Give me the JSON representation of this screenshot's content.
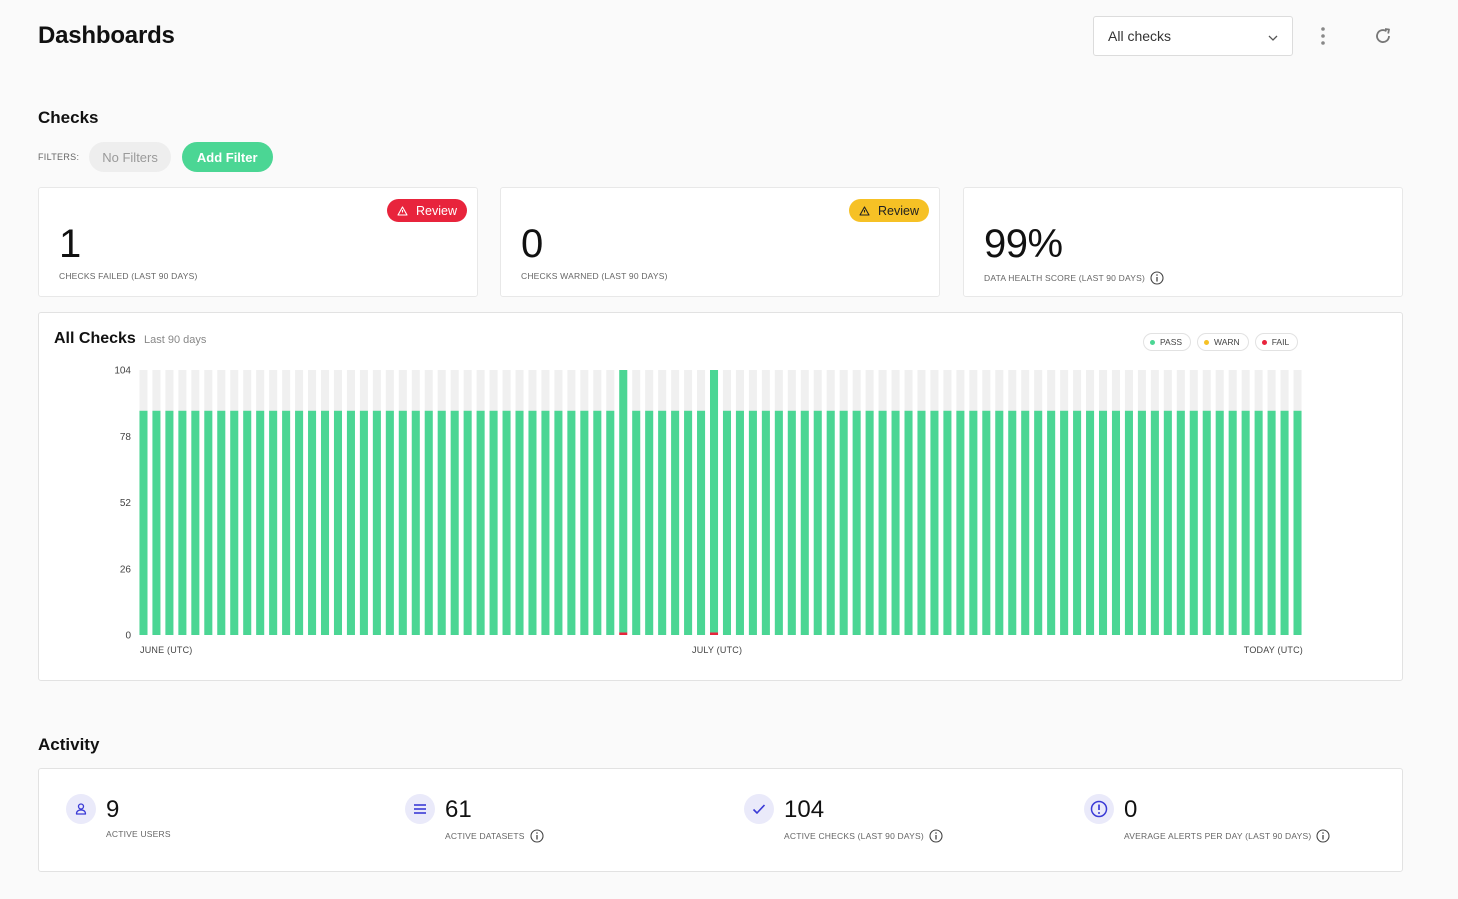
{
  "header": {
    "title": "Dashboards",
    "select_value": "All checks"
  },
  "checks": {
    "title": "Checks",
    "filters_label": "FILTERS:",
    "no_filters": "No Filters",
    "add_filter": "Add Filter"
  },
  "stats": [
    {
      "value": "1",
      "label": "CHECKS FAILED (LAST 90 DAYS)",
      "badge": "Review",
      "badge_color": "#e8243c"
    },
    {
      "value": "0",
      "label": "CHECKS WARNED (LAST 90 DAYS)",
      "badge": "Review",
      "badge_color": "#f6c125"
    },
    {
      "value": "99%",
      "label": "DATA HEALTH SCORE (LAST 90 DAYS)"
    }
  ],
  "chart": {
    "title": "All Checks",
    "subtitle": "Last 90 days",
    "legend": [
      {
        "label": "PASS",
        "color": "#4bd694"
      },
      {
        "label": "WARN",
        "color": "#f6c125"
      },
      {
        "label": "FAIL",
        "color": "#e8243c"
      }
    ]
  },
  "chart_data": {
    "type": "bar",
    "stacked": true,
    "bar_count": 90,
    "ylim": [
      0,
      104
    ],
    "yticks": [
      "0",
      "26",
      "52",
      "78",
      "104"
    ],
    "xticks": [
      "JUNE (UTC)",
      "JULY (UTC)",
      "TODAY (UTC)"
    ],
    "series": [
      {
        "name": "PASS",
        "color": "#4bd694",
        "default": 88,
        "overrides": {
          "37": 103,
          "44": 103
        }
      },
      {
        "name": "WARN",
        "color": "#f6c125",
        "default": 0
      },
      {
        "name": "FAIL",
        "color": "#e8243c",
        "default": 0,
        "overrides": {
          "37": 1,
          "44": 1
        }
      }
    ],
    "total": 104,
    "background_color": "#f0f0f0"
  },
  "activity": {
    "title": "Activity",
    "items": [
      {
        "value": "9",
        "label": "ACTIVE USERS",
        "icon": "user-icon"
      },
      {
        "value": "61",
        "label": "ACTIVE DATASETS",
        "icon": "list-icon"
      },
      {
        "value": "104",
        "label": "ACTIVE CHECKS (LAST 90 DAYS)",
        "icon": "check-icon"
      },
      {
        "value": "0",
        "label": "AVERAGE ALERTS PER DAY (LAST 90 DAYS)",
        "icon": "alert-icon"
      }
    ]
  },
  "colors": {
    "accent": "#4bd694",
    "danger": "#e8243c",
    "warning": "#f6c125",
    "icon_bg": "#eaeafa",
    "icon_fg": "#3b3bd6"
  }
}
